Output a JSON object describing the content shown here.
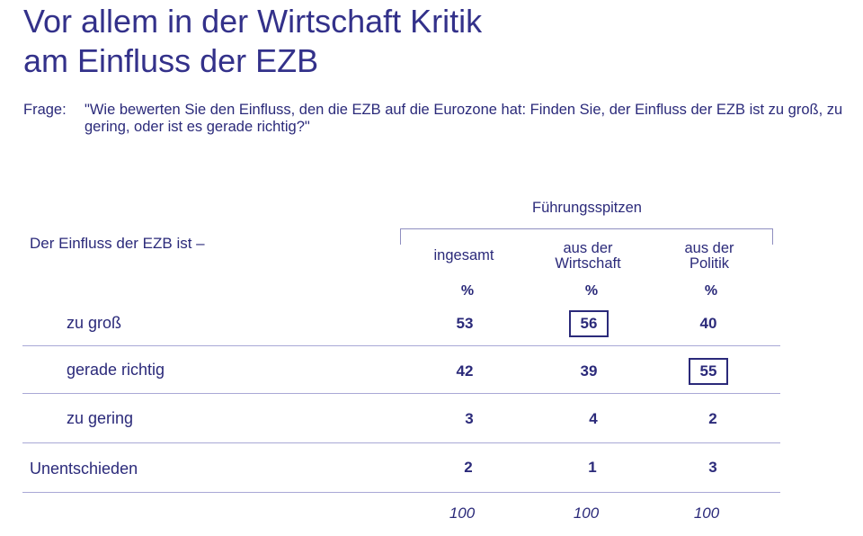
{
  "title": {
    "line1": "Vor allem in der Wirtschaft Kritik",
    "line2": "am Einfluss der EZB"
  },
  "question": {
    "label": "Frage:",
    "text": "\"Wie bewerten Sie den Einfluss, den die EZB auf die Eurozone hat: Finden Sie, der Einfluss der EZB ist zu groß, zu gering, oder ist es gerade richtig?\""
  },
  "colors": {
    "text": "#2b2a7a",
    "rule": "#a9a8d6"
  },
  "chart_data": {
    "type": "table",
    "stub_label": "Der Einfluss der EZB ist –",
    "group_header": "Führungsspitzen",
    "columns": [
      {
        "line1": "ingesamt",
        "line2": "",
        "unit": "%",
        "total": "100"
      },
      {
        "line1": "aus der",
        "line2": "Wirtschaft",
        "unit": "%",
        "total": "100"
      },
      {
        "line1": "aus der",
        "line2": "Politik",
        "unit": "%",
        "total": "100"
      }
    ],
    "rows": [
      {
        "label": "zu groß",
        "values": [
          "53",
          "56",
          "40"
        ],
        "highlight": [
          false,
          true,
          false
        ]
      },
      {
        "label": "gerade richtig",
        "values": [
          "42",
          "39",
          "55"
        ],
        "highlight": [
          false,
          false,
          true
        ]
      },
      {
        "label": "zu gering",
        "values": [
          "3",
          "4",
          "2"
        ],
        "highlight": [
          false,
          false,
          false
        ]
      },
      {
        "label": "Unentschieden",
        "values": [
          "2",
          "1",
          "3"
        ],
        "highlight": [
          false,
          false,
          false
        ]
      }
    ]
  }
}
